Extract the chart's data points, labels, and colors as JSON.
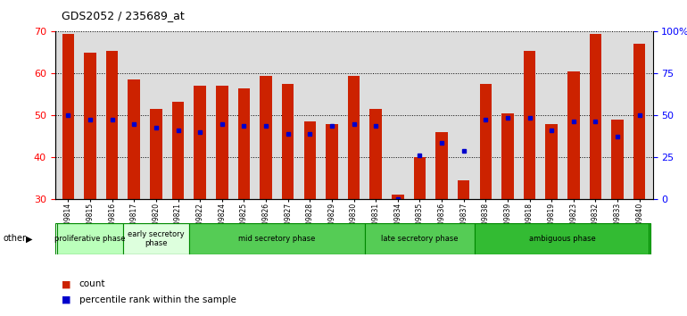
{
  "title": "GDS2052 / 235689_at",
  "samples": [
    "GSM109814",
    "GSM109815",
    "GSM109816",
    "GSM109817",
    "GSM109820",
    "GSM109821",
    "GSM109822",
    "GSM109824",
    "GSM109825",
    "GSM109826",
    "GSM109827",
    "GSM109828",
    "GSM109829",
    "GSM109830",
    "GSM109831",
    "GSM109834",
    "GSM109835",
    "GSM109836",
    "GSM109837",
    "GSM109838",
    "GSM109839",
    "GSM109818",
    "GSM109819",
    "GSM109823",
    "GSM109832",
    "GSM109833",
    "GSM109840"
  ],
  "count_values": [
    69.5,
    65.0,
    65.5,
    58.5,
    51.5,
    53.2,
    57.0,
    57.0,
    56.5,
    59.5,
    57.5,
    48.5,
    48.0,
    59.5,
    51.5,
    31.0,
    40.0,
    46.0,
    34.5,
    57.5,
    50.5,
    65.5,
    48.0,
    60.5,
    69.5,
    49.0,
    67.0
  ],
  "percentile_values": [
    50.0,
    49.0,
    49.0,
    48.0,
    47.0,
    46.5,
    46.0,
    48.0,
    47.5,
    47.5,
    45.5,
    45.5,
    47.5,
    48.0,
    47.5,
    30.0,
    40.5,
    43.5,
    41.5,
    49.0,
    49.5,
    49.5,
    46.5,
    48.5,
    48.5,
    45.0,
    50.0
  ],
  "phase_list": [
    {
      "label": "proliferative phase",
      "start": 0,
      "end": 3,
      "color": "#bbffbb"
    },
    {
      "label": "early secretory\nphase",
      "start": 3,
      "end": 6,
      "color": "#ddffdd"
    },
    {
      "label": "mid secretory phase",
      "start": 6,
      "end": 14,
      "color": "#55cc55"
    },
    {
      "label": "late secretory phase",
      "start": 14,
      "end": 19,
      "color": "#55cc55"
    },
    {
      "label": "ambiguous phase",
      "start": 19,
      "end": 27,
      "color": "#33bb33"
    }
  ],
  "ylim": [
    30,
    70
  ],
  "yticks": [
    30,
    40,
    50,
    60,
    70
  ],
  "bar_color": "#cc2200",
  "percentile_color": "#0000cc",
  "right_ytick_vals": [
    0,
    25,
    50,
    75,
    100
  ],
  "right_ylabels": [
    "0",
    "25",
    "50",
    "75",
    "100%"
  ],
  "background_color": "#dddddd"
}
